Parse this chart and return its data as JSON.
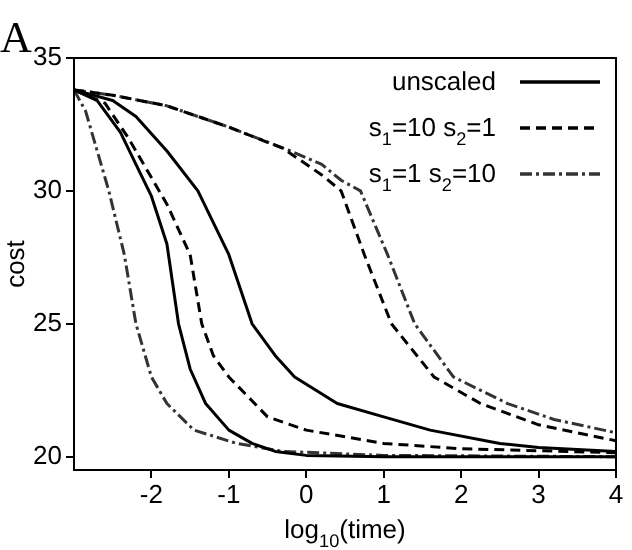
{
  "chart_data": {
    "type": "line",
    "annotations": [
      "A"
    ],
    "xlabel": "log$_{10}$(time)",
    "ylabel": "cost",
    "xlim": [
      -3,
      4
    ],
    "ylim": [
      19.5,
      35
    ],
    "xticks": [
      -2,
      -1,
      0,
      1,
      2,
      3,
      4
    ],
    "yticks": [
      20,
      25,
      30,
      35
    ],
    "grid": false,
    "legend": "top right",
    "marker": "none",
    "series": [
      {
        "name": "unscaled",
        "color": "#000000",
        "line_style": "solid",
        "x": [
          -3,
          -2.7,
          -2.4,
          -2.2,
          -2,
          -1.8,
          -1.65,
          -1.5,
          -1.3,
          -1,
          -0.7,
          -0.4,
          0,
          1,
          4
        ],
        "values": [
          33.8,
          33.4,
          32.2,
          31,
          29.8,
          28,
          25,
          23.3,
          22,
          21,
          20.5,
          20.2,
          20.05,
          20,
          20
        ]
      },
      {
        "color": "#000000",
        "line_style": "solid",
        "x": [
          -3,
          -2.5,
          -2.2,
          -1.8,
          -1.4,
          -1,
          -0.7,
          -0.4,
          -0.15,
          0.4,
          1,
          1.6,
          2.5,
          3,
          4
        ],
        "values": [
          33.8,
          33.4,
          32.8,
          31.5,
          30,
          27.6,
          25,
          23.8,
          23,
          22,
          21.5,
          21,
          20.5,
          20.35,
          20.2
        ]
      },
      {
        "name": "s$_{1}$=10 s$_{2}$=1",
        "color": "#000000",
        "line_style": "dashed",
        "x": [
          -3,
          -2.6,
          -2.3,
          -2,
          -1.8,
          -1.5,
          -1.35,
          -1.2,
          -1,
          -0.5,
          0,
          1,
          2,
          4
        ],
        "values": [
          33.8,
          33.3,
          32,
          30.5,
          29.5,
          27.6,
          25,
          23.8,
          23,
          21.5,
          21,
          20.5,
          20.3,
          20.15
        ]
      },
      {
        "color": "#000000",
        "line_style": "dashed",
        "x": [
          -3,
          -2.5,
          -1.8,
          -1,
          -0.3,
          0,
          0.2,
          0.45,
          0.75,
          1.1,
          1.65,
          2.25,
          3,
          4
        ],
        "values": [
          33.8,
          33.6,
          33.2,
          32.4,
          31.6,
          31,
          30.6,
          30,
          27.6,
          25,
          23,
          22,
          21.2,
          20.6
        ]
      },
      {
        "name": "s$_{1}$=1 s$_{2}$=10",
        "color": "#333333",
        "line_style": "dashdot",
        "x": [
          -3,
          -2.85,
          -2.7,
          -2.55,
          -2.35,
          -2.2,
          -2,
          -1.8,
          -1.45,
          -0.9,
          -0.3,
          1,
          4
        ],
        "values": [
          33.8,
          33,
          31.5,
          30,
          27.6,
          25,
          23,
          22,
          21,
          20.5,
          20.2,
          20.05,
          20
        ]
      },
      {
        "color": "#333333",
        "line_style": "dashdot",
        "x": [
          -3,
          -2.5,
          -1.8,
          -1,
          -0.2,
          0.2,
          0.45,
          0.7,
          1.05,
          1.4,
          1.9,
          2.6,
          3.2,
          4
        ],
        "values": [
          33.8,
          33.6,
          33.2,
          32.4,
          31.5,
          31,
          30.4,
          30,
          27.6,
          25,
          23,
          22,
          21.4,
          20.9
        ]
      }
    ]
  }
}
